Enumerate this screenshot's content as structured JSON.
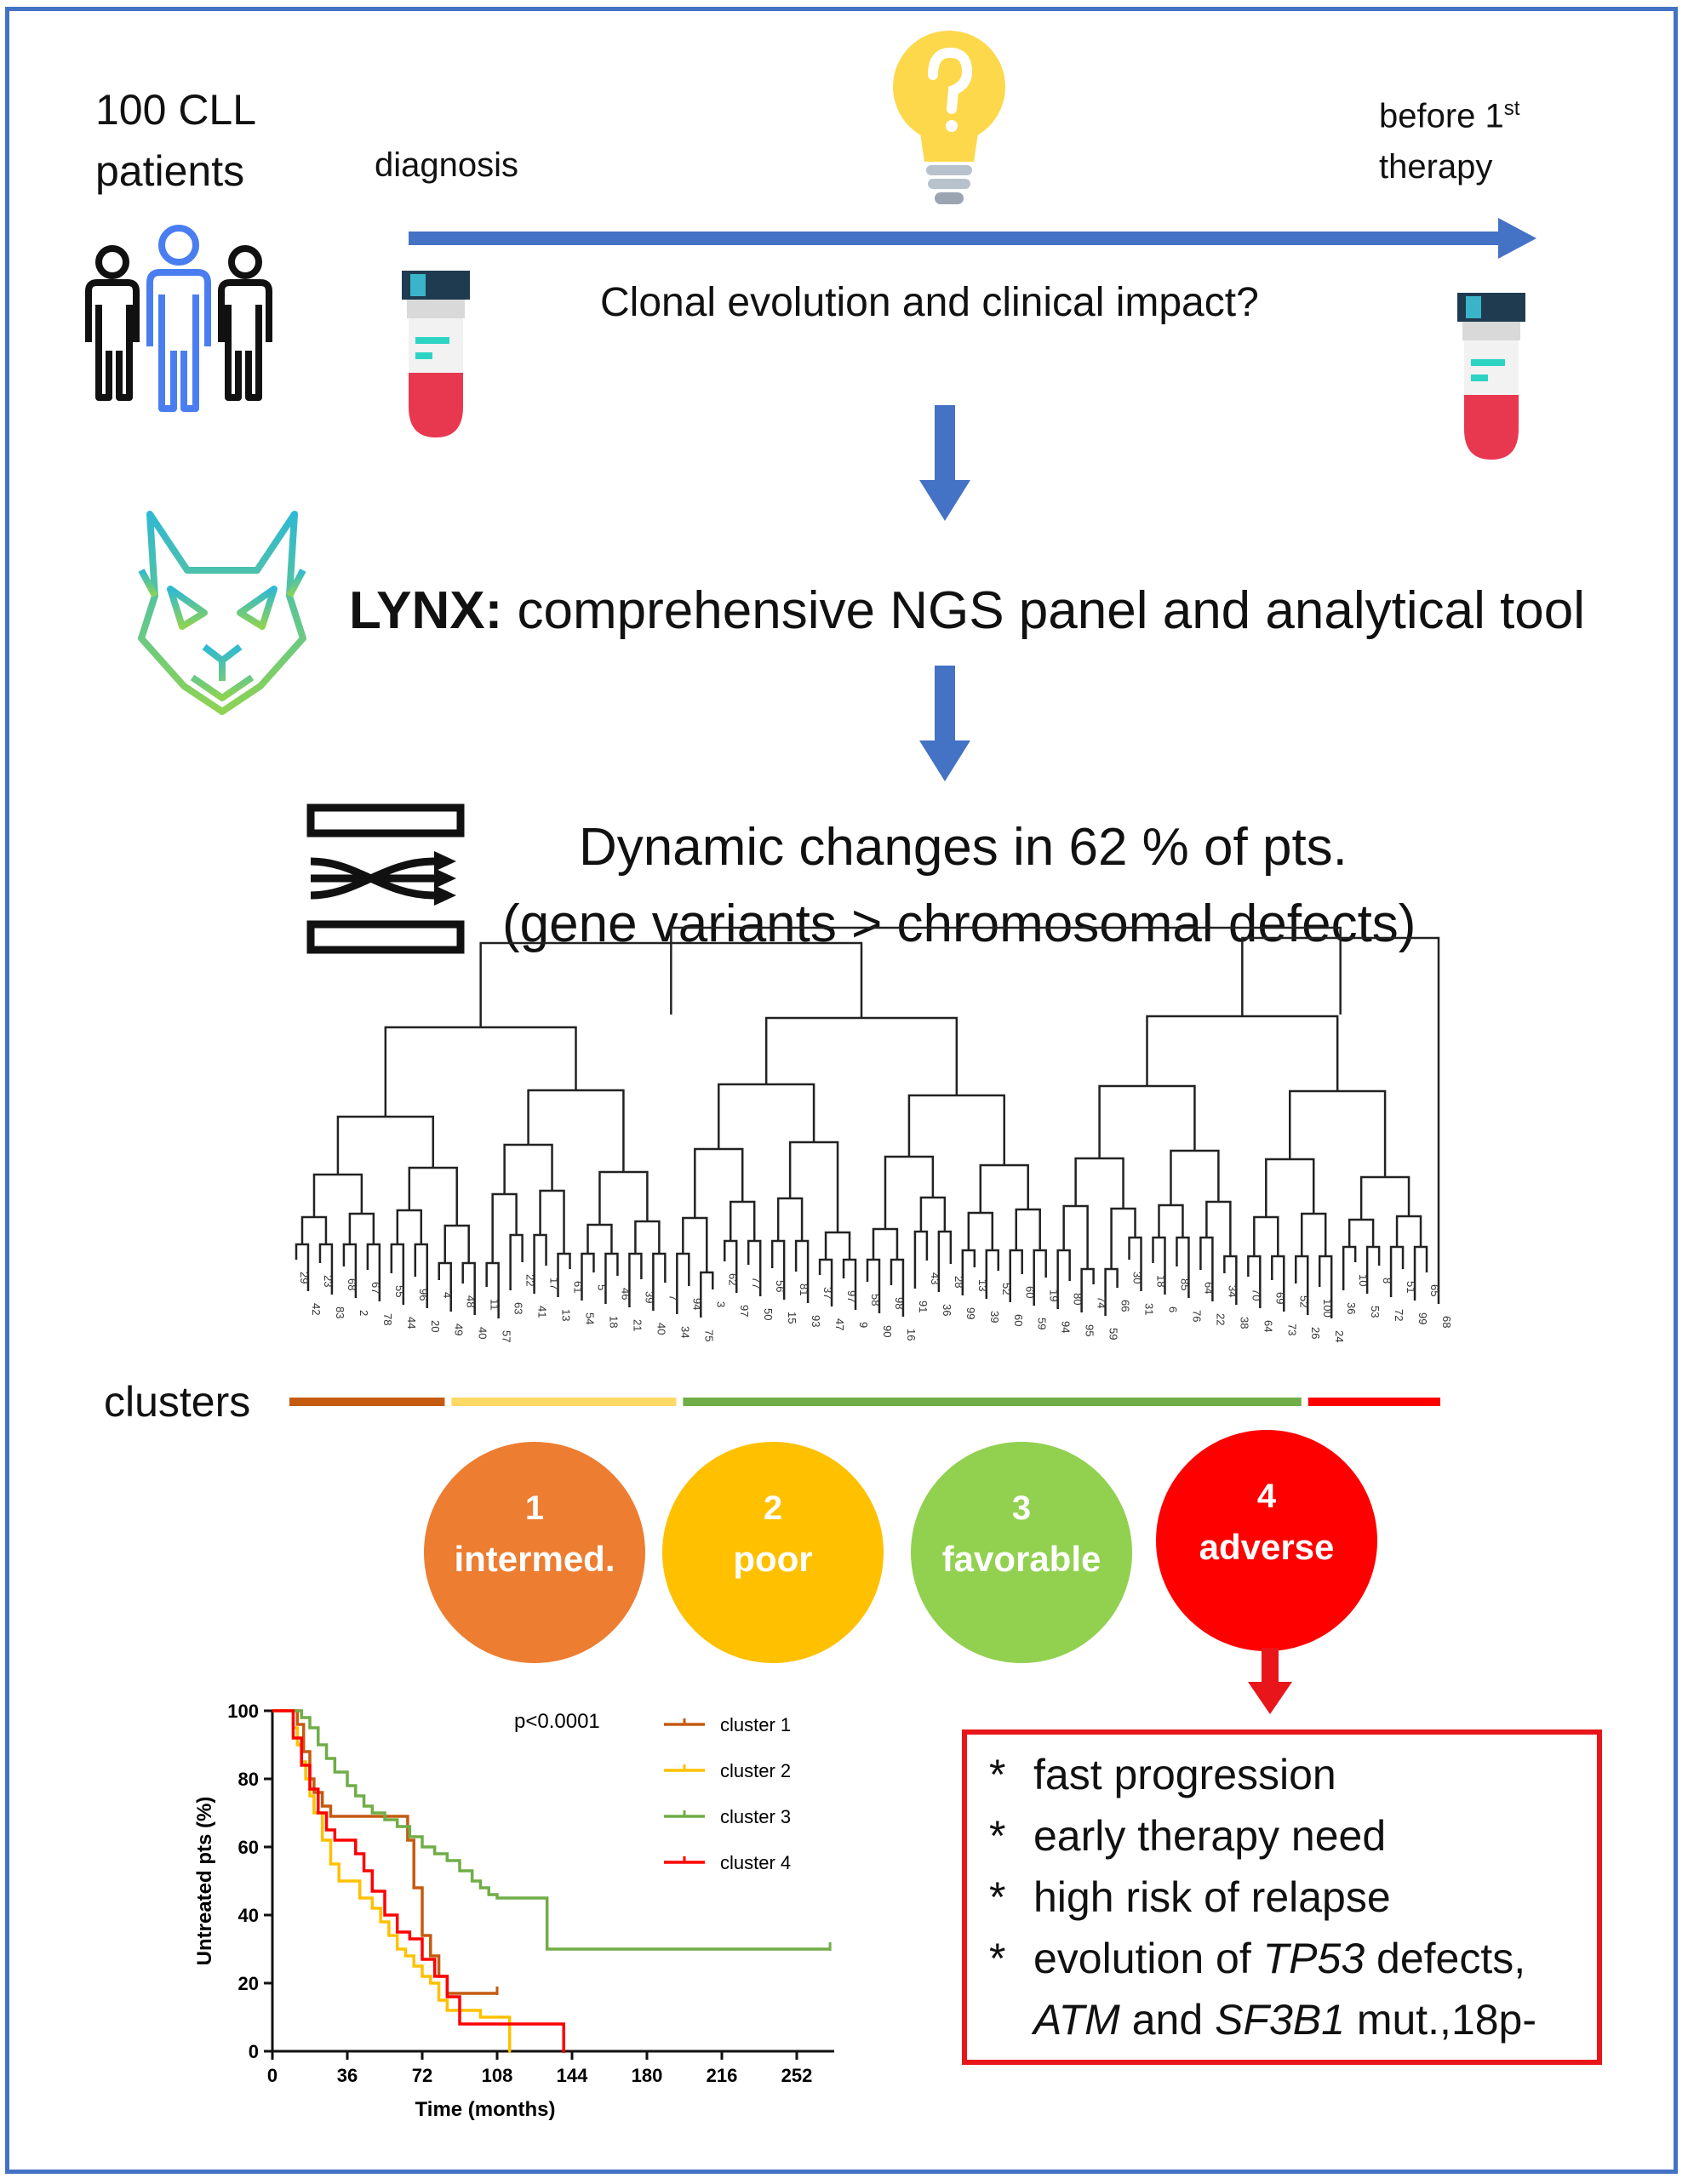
{
  "top": {
    "cohort": [
      "100 CLL",
      "patients"
    ],
    "start_label": "diagnosis",
    "end_label_prefix": "before 1",
    "end_label_sup": "st",
    "end_label_suffix": "therapy",
    "question": "Clonal evolution and clinical impact?"
  },
  "steps": {
    "lynx_name": "LYNX:",
    "lynx_desc": " comprehensive NGS panel and analytical tool",
    "dynamics_line1": "Dynamic changes in 62 % of pts.",
    "dynamics_line2": "(gene variants > chromosomal defects)"
  },
  "dendrogram": {
    "clusters_label": "clusters",
    "leaves": [
      "29",
      "42",
      "23",
      "83",
      "68",
      "2",
      "67",
      "78",
      "55",
      "44",
      "96",
      "20",
      "4",
      "49",
      "48",
      "40",
      "11",
      "57",
      "63",
      "22",
      "41",
      "17",
      "13",
      "61",
      "54",
      "5",
      "18",
      "46",
      "21",
      "39",
      "40",
      "7",
      "34",
      "94",
      "75",
      "3",
      "62",
      "97",
      "77",
      "50",
      "56",
      "15",
      "81",
      "93",
      "37",
      "47",
      "97",
      "9",
      "58",
      "90",
      "98",
      "16",
      "91",
      "43",
      "36",
      "28",
      "99",
      "13",
      "39",
      "52",
      "60",
      "60",
      "59",
      "19",
      "94",
      "80",
      "95",
      "74",
      "59",
      "66",
      "30",
      "31",
      "18",
      "6",
      "85",
      "76",
      "64",
      "22",
      "34",
      "38",
      "70",
      "64",
      "69",
      "73",
      "52",
      "26",
      "100",
      "24",
      "36",
      "10",
      "53",
      "8",
      "72",
      "51",
      "99",
      "65",
      "68"
    ],
    "cluster_colors": [
      "#c55a11",
      "#ffd966",
      "#70ad47",
      "#ff0000"
    ],
    "cluster_bar_fraction": [
      0.14,
      0.2,
      0.54,
      0.12
    ]
  },
  "clusters": [
    {
      "number": "1",
      "label": "intermed.",
      "color": "#ed7d31"
    },
    {
      "number": "2",
      "label": "poor",
      "color": "#ffc000"
    },
    {
      "number": "3",
      "label": "favorable",
      "color": "#92d050"
    },
    {
      "number": "4",
      "label": "adverse",
      "color": "#ff0000"
    }
  ],
  "chart_data": {
    "type": "line",
    "title": "",
    "xlabel": "Time (months)",
    "ylabel": "Untreated pts (%)",
    "xlim": [
      0,
      270
    ],
    "ylim": [
      0,
      100
    ],
    "x_ticks": [
      0,
      36,
      72,
      108,
      144,
      180,
      216,
      252
    ],
    "y_ticks": [
      0,
      20,
      40,
      60,
      80,
      100
    ],
    "annotation": "p<0.0001",
    "legend_position": "top-right",
    "series": [
      {
        "name": "cluster 1",
        "color": "#c55a11",
        "x": [
          0,
          12,
          15,
          18,
          20,
          24,
          28,
          32,
          36,
          60,
          65,
          68,
          72,
          76,
          80,
          84,
          108
        ],
        "y": [
          100,
          96,
          88,
          80,
          76,
          72,
          69,
          69,
          69,
          69,
          62,
          48,
          34,
          28,
          22,
          17,
          17
        ]
      },
      {
        "name": "cluster 2",
        "color": "#ffc000",
        "x": [
          0,
          10,
          12,
          14,
          16,
          18,
          20,
          24,
          28,
          32,
          36,
          42,
          48,
          52,
          56,
          60,
          64,
          68,
          72,
          76,
          80,
          84,
          88,
          100,
          110,
          114
        ],
        "y": [
          100,
          95,
          90,
          85,
          80,
          75,
          70,
          62,
          55,
          50,
          50,
          45,
          42,
          38,
          34,
          30,
          28,
          25,
          22,
          20,
          15,
          12,
          12,
          10,
          10,
          0
        ]
      },
      {
        "name": "cluster 3",
        "color": "#70ad47",
        "x": [
          0,
          14,
          18,
          22,
          26,
          30,
          36,
          40,
          44,
          48,
          54,
          60,
          66,
          72,
          78,
          84,
          90,
          96,
          100,
          104,
          108,
          128,
          132,
          268
        ],
        "y": [
          100,
          98,
          95,
          90,
          86,
          82,
          78,
          75,
          72,
          70,
          68,
          66,
          63,
          60,
          58,
          56,
          53,
          50,
          48,
          46,
          45,
          45,
          30,
          30
        ]
      },
      {
        "name": "cluster 4",
        "color": "#ff0000",
        "x": [
          0,
          10,
          14,
          18,
          22,
          26,
          30,
          40,
          44,
          48,
          54,
          60,
          66,
          72,
          78,
          84,
          90,
          120,
          140
        ],
        "y": [
          100,
          92,
          84,
          77,
          70,
          65,
          62,
          58,
          53,
          47,
          40,
          35,
          33,
          27,
          22,
          16,
          8,
          8,
          0
        ]
      }
    ]
  },
  "outcome": {
    "star": "*",
    "b1": "fast progression",
    "b2": "early therapy need",
    "b3": "high risk of relapse",
    "b4_pre": "evolution of ",
    "b4_gene": "TP53",
    "b4_post": " defects,",
    "b5_gene1": "ATM",
    "b5_mid": " and ",
    "b5_gene2": "SF3B1",
    "b5_post": " mut.,18p-"
  }
}
